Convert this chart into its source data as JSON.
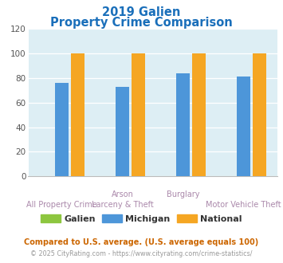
{
  "title_line1": "2019 Galien",
  "title_line2": "Property Crime Comparison",
  "title_color": "#1a6fba",
  "galien": [
    0,
    0,
    0,
    0
  ],
  "michigan": [
    76,
    73,
    84,
    81
  ],
  "national": [
    100,
    100,
    100,
    100
  ],
  "galien_color": "#8dc63f",
  "michigan_color": "#4d96d9",
  "national_color": "#f5a623",
  "ylim": [
    0,
    120
  ],
  "yticks": [
    0,
    20,
    40,
    60,
    80,
    100,
    120
  ],
  "bg_color": "#ddeef4",
  "legend_labels": [
    "Galien",
    "Michigan",
    "National"
  ],
  "xlabel_top": [
    "",
    "Arson",
    "Burglary",
    ""
  ],
  "xlabel_bottom": [
    "All Property Crime",
    "Larceny & Theft",
    "",
    "Motor Vehicle Theft"
  ],
  "xlabel_color": "#aa88aa",
  "footnote1": "Compared to U.S. average. (U.S. average equals 100)",
  "footnote2": "© 2025 CityRating.com - https://www.cityrating.com/crime-statistics/",
  "footnote1_color": "#cc6600",
  "footnote2_color": "#999999",
  "footnote2_link_color": "#4d96d9"
}
